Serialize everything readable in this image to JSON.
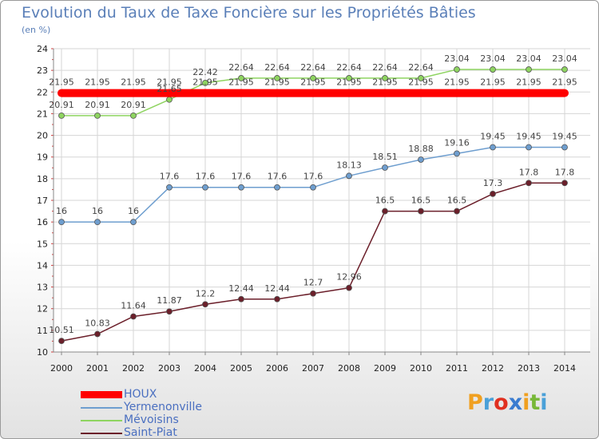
{
  "header": {
    "title": "Evolution du Taux de Taxe Foncière sur les Propriétés Bâties",
    "subtitle": "(en %)"
  },
  "logo": {
    "text": "Proxiti",
    "letters": [
      "P",
      "r",
      "o",
      "x",
      "i",
      "t",
      "i"
    ],
    "colors": [
      "#f0a020",
      "#4aa0d8",
      "#e03020",
      "#3a7cd0",
      "#f0a020",
      "#78b838",
      "#4aa0d8"
    ]
  },
  "chart_data": {
    "type": "line",
    "title": "Evolution du Taux de Taxe Foncière sur les Propriétés Bâties",
    "ylabel": "(en %)",
    "xlabel": "",
    "x": [
      "2000",
      "2001",
      "2002",
      "2003",
      "2004",
      "2005",
      "2006",
      "2007",
      "2008",
      "2009",
      "2010",
      "2011",
      "2012",
      "2013",
      "2014"
    ],
    "ylim": [
      10,
      24
    ],
    "yticks": [
      "10",
      "11",
      "12",
      "13",
      "14",
      "15",
      "16",
      "17",
      "18",
      "19",
      "20",
      "21",
      "22",
      "23",
      "24"
    ],
    "grid": true,
    "legend": "bottom-left",
    "series": [
      {
        "name": "HOUX",
        "color": "#ff0000",
        "values": [
          21.95,
          21.95,
          21.95,
          21.95,
          21.95,
          21.95,
          21.95,
          21.95,
          21.95,
          21.95,
          21.95,
          21.95,
          21.95,
          21.95,
          21.95
        ],
        "labels": [
          "21.95",
          "21.95",
          "21.95",
          "21.95",
          "21.95",
          "21.95",
          "21.95",
          "21.95",
          "21.95",
          "21.95",
          "21.95",
          "21.95",
          "21.95",
          "21.95",
          "21.95"
        ]
      },
      {
        "name": "Yermenonville",
        "color": "#6e9ecf",
        "values": [
          16,
          16,
          16,
          17.6,
          17.6,
          17.6,
          17.6,
          17.6,
          18.13,
          18.51,
          18.88,
          19.16,
          19.45,
          19.45,
          19.45
        ],
        "labels": [
          "16",
          "16",
          "16",
          "17.6",
          "17.6",
          "17.6",
          "17.6",
          "17.6",
          "18.13",
          "18.51",
          "18.88",
          "19.16",
          "19.45",
          "19.45",
          "19.45"
        ]
      },
      {
        "name": "Mévoisins",
        "color": "#8ed460",
        "values": [
          20.91,
          20.91,
          20.91,
          21.65,
          22.42,
          22.64,
          22.64,
          22.64,
          22.64,
          22.64,
          22.64,
          23.04,
          23.04,
          23.04,
          23.04
        ],
        "labels": [
          "20.91",
          "20.91",
          "20.91",
          "21.65",
          "22.42",
          "22.64",
          "22.64",
          "22.64",
          "22.64",
          "22.64",
          "22.64",
          "23.04",
          "23.04",
          "23.04",
          "23.04"
        ]
      },
      {
        "name": "Saint-Piat",
        "color": "#6b1f2a",
        "values": [
          10.51,
          10.83,
          11.64,
          11.87,
          12.2,
          12.44,
          12.44,
          12.7,
          12.96,
          16.5,
          16.5,
          16.5,
          17.3,
          17.8,
          17.8
        ],
        "labels": [
          "10.51",
          "10.83",
          "11.64",
          "11.87",
          "12.2",
          "12.44",
          "12.44",
          "12.7",
          "12.96",
          "16.5",
          "16.5",
          "16.5",
          "17.3",
          "17.8",
          "17.8"
        ]
      }
    ]
  }
}
